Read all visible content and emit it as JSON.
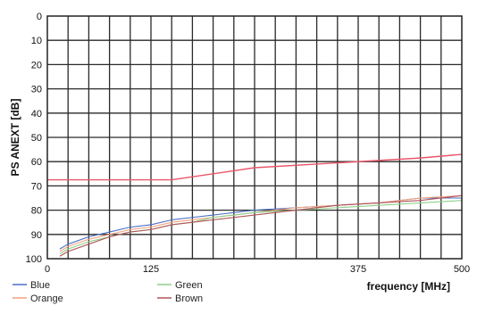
{
  "chart_data": {
    "type": "line",
    "ylabel": "PS ANEXT [dB]",
    "xlabel": "frequency [MHz]",
    "xlim": [
      0,
      500
    ],
    "ylim": [
      0,
      100
    ],
    "y_inverted": true,
    "grid": true,
    "x_ticks": [
      0,
      125,
      375,
      500
    ],
    "y_ticks": [
      0,
      10,
      20,
      30,
      40,
      50,
      60,
      70,
      80,
      90,
      100
    ],
    "limit_line": {
      "color": "#e8576a",
      "x": [
        0,
        150,
        250,
        350,
        450,
        500
      ],
      "values": [
        67.5,
        67.5,
        62.5,
        60.5,
        58.5,
        57.0
      ]
    },
    "x": [
      15,
      25,
      50,
      75,
      100,
      125,
      150,
      175,
      200,
      250,
      300,
      350,
      400,
      450,
      500
    ],
    "series": [
      {
        "name": "Blue",
        "color": "#4a6fc4",
        "values": [
          96,
          94,
          91,
          89,
          87,
          86,
          84,
          83,
          82,
          80,
          79,
          78,
          77,
          75,
          75
        ]
      },
      {
        "name": "Orange",
        "color": "#f2a27a",
        "values": [
          97,
          95,
          92,
          90,
          88,
          87,
          85,
          84,
          83,
          81,
          79,
          78,
          77,
          75,
          74
        ]
      },
      {
        "name": "Green",
        "color": "#8ecf8a",
        "values": [
          98,
          96,
          93,
          91,
          89,
          88,
          86,
          85,
          83,
          81,
          80,
          79,
          78,
          77,
          76
        ]
      },
      {
        "name": "Brown",
        "color": "#b0555a",
        "values": [
          99,
          97,
          94,
          91,
          89,
          88,
          86,
          85,
          84,
          82,
          80,
          78,
          77,
          76,
          74
        ]
      }
    ]
  }
}
